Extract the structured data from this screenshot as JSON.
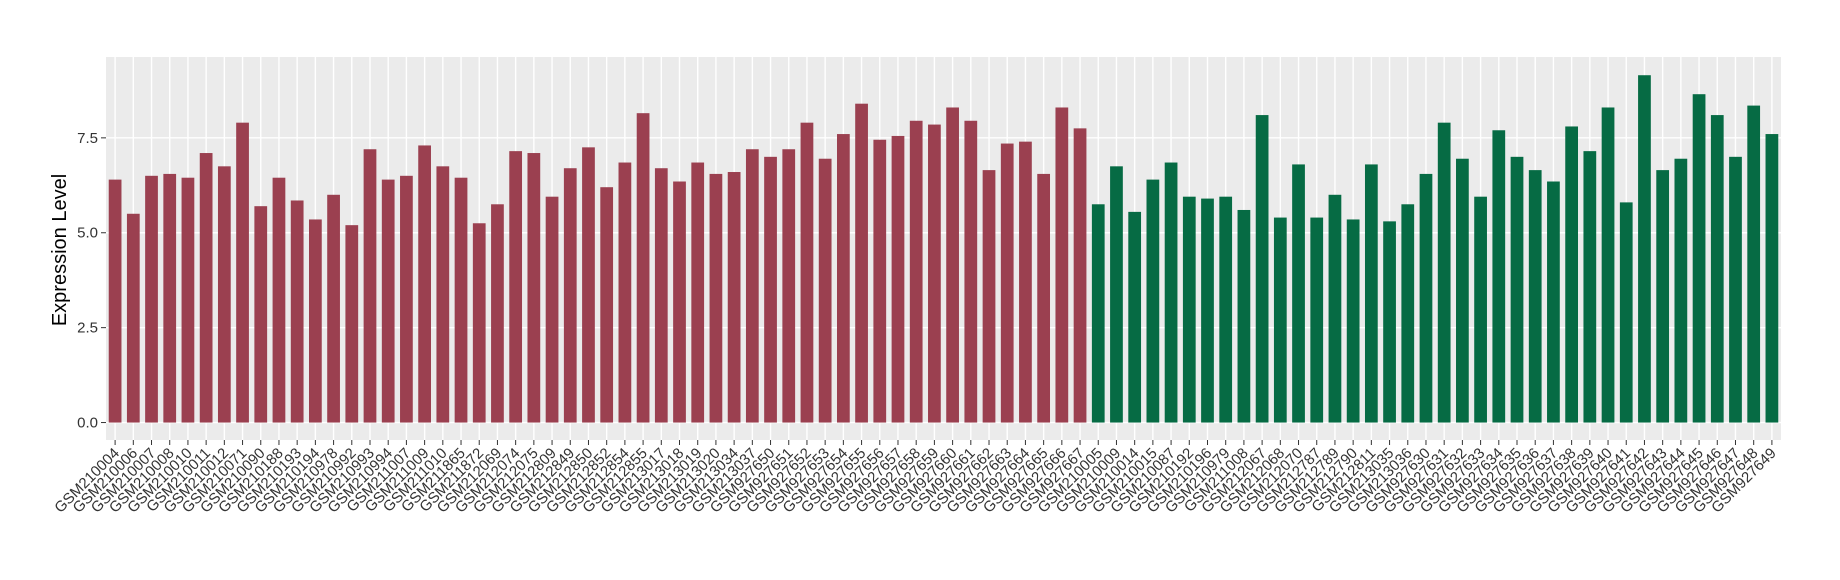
{
  "chart_data": {
    "type": "bar",
    "y_label": "Expression Level",
    "categories": [
      "GSM210004",
      "GSM210006",
      "GSM210007",
      "GSM210008",
      "GSM210010",
      "GSM210011",
      "GSM210012",
      "GSM210071",
      "GSM210090",
      "GSM210188",
      "GSM210193",
      "GSM210194",
      "GSM210978",
      "GSM210992",
      "GSM210993",
      "GSM210994",
      "GSM211007",
      "GSM211009",
      "GSM211010",
      "GSM211865",
      "GSM211872",
      "GSM212069",
      "GSM212074",
      "GSM212075",
      "GSM212809",
      "GSM212849",
      "GSM212850",
      "GSM212852",
      "GSM212854",
      "GSM212855",
      "GSM213017",
      "GSM213018",
      "GSM213019",
      "GSM213020",
      "GSM213034",
      "GSM213037",
      "GSM927650",
      "GSM927651",
      "GSM927652",
      "GSM927653",
      "GSM927654",
      "GSM927655",
      "GSM927656",
      "GSM927657",
      "GSM927658",
      "GSM927659",
      "GSM927660",
      "GSM927661",
      "GSM927662",
      "GSM927663",
      "GSM927664",
      "GSM927665",
      "GSM927666",
      "GSM927667",
      "GSM210005",
      "GSM210009",
      "GSM210014",
      "GSM210015",
      "GSM210087",
      "GSM210192",
      "GSM210196",
      "GSM210979",
      "GSM211008",
      "GSM212067",
      "GSM212068",
      "GSM212070",
      "GSM212787",
      "GSM212789",
      "GSM212790",
      "GSM212811",
      "GSM213035",
      "GSM213036",
      "GSM927630",
      "GSM927631",
      "GSM927632",
      "GSM927633",
      "GSM927634",
      "GSM927635",
      "GSM927636",
      "GSM927637",
      "GSM927638",
      "GSM927639",
      "GSM927640",
      "GSM927641",
      "GSM927642",
      "GSM927643",
      "GSM927644",
      "GSM927645",
      "GSM927646",
      "GSM927647",
      "GSM927648",
      "GSM927649"
    ],
    "series": [
      {
        "color": "#9b4050",
        "values": [
          6.4,
          5.5,
          6.5,
          6.55,
          6.45,
          7.1,
          6.75,
          7.9,
          5.7,
          6.45,
          5.85,
          5.35,
          6.0,
          5.2,
          7.2,
          6.4,
          6.5,
          7.3,
          6.75,
          6.45,
          5.25,
          5.75,
          7.15,
          7.1,
          5.95,
          6.7,
          7.25,
          6.2,
          6.85,
          8.15,
          6.7,
          6.35,
          6.85,
          6.55,
          6.6,
          7.2,
          7.0,
          7.2,
          7.9,
          6.95,
          7.6,
          8.4,
          7.45,
          7.55,
          7.95,
          7.85,
          8.3,
          7.95,
          6.65,
          7.35,
          7.4,
          6.55,
          8.3,
          7.75,
          null,
          null,
          null,
          null,
          null,
          null,
          null,
          null,
          null,
          null,
          null,
          null,
          null,
          null,
          null,
          null,
          null,
          null,
          null,
          null,
          null,
          null,
          null,
          null,
          null,
          null,
          null,
          null,
          null,
          null,
          null,
          null,
          null,
          null,
          null,
          null,
          null,
          null
        ]
      },
      {
        "color": "#066b44",
        "values": [
          null,
          null,
          null,
          null,
          null,
          null,
          null,
          null,
          null,
          null,
          null,
          null,
          null,
          null,
          null,
          null,
          null,
          null,
          null,
          null,
          null,
          null,
          null,
          null,
          null,
          null,
          null,
          null,
          null,
          null,
          null,
          null,
          null,
          null,
          null,
          null,
          null,
          null,
          null,
          null,
          null,
          null,
          null,
          null,
          null,
          null,
          null,
          null,
          null,
          null,
          null,
          null,
          null,
          null,
          5.75,
          6.75,
          5.55,
          6.4,
          6.85,
          5.95,
          5.9,
          5.95,
          5.6,
          8.1,
          5.4,
          6.8,
          5.4,
          6.0,
          5.35,
          6.8,
          5.3,
          5.75,
          6.55,
          7.9,
          6.95,
          5.95,
          7.7,
          7.0,
          6.65,
          6.35,
          7.8,
          7.15,
          8.3,
          5.8,
          9.15,
          6.65,
          6.95,
          8.65,
          8.1,
          7.0,
          8.35,
          7.6
        ]
      }
    ],
    "ylim": [
      -0.46,
      9.63
    ],
    "yticks": [
      {
        "value": 0,
        "label": "0.0"
      },
      {
        "value": 2.5,
        "label": "2.5"
      },
      {
        "value": 5,
        "label": "5.0"
      },
      {
        "value": 7.5,
        "label": "7.5"
      }
    ],
    "grid": true,
    "panel_color": "#ebebeb"
  }
}
